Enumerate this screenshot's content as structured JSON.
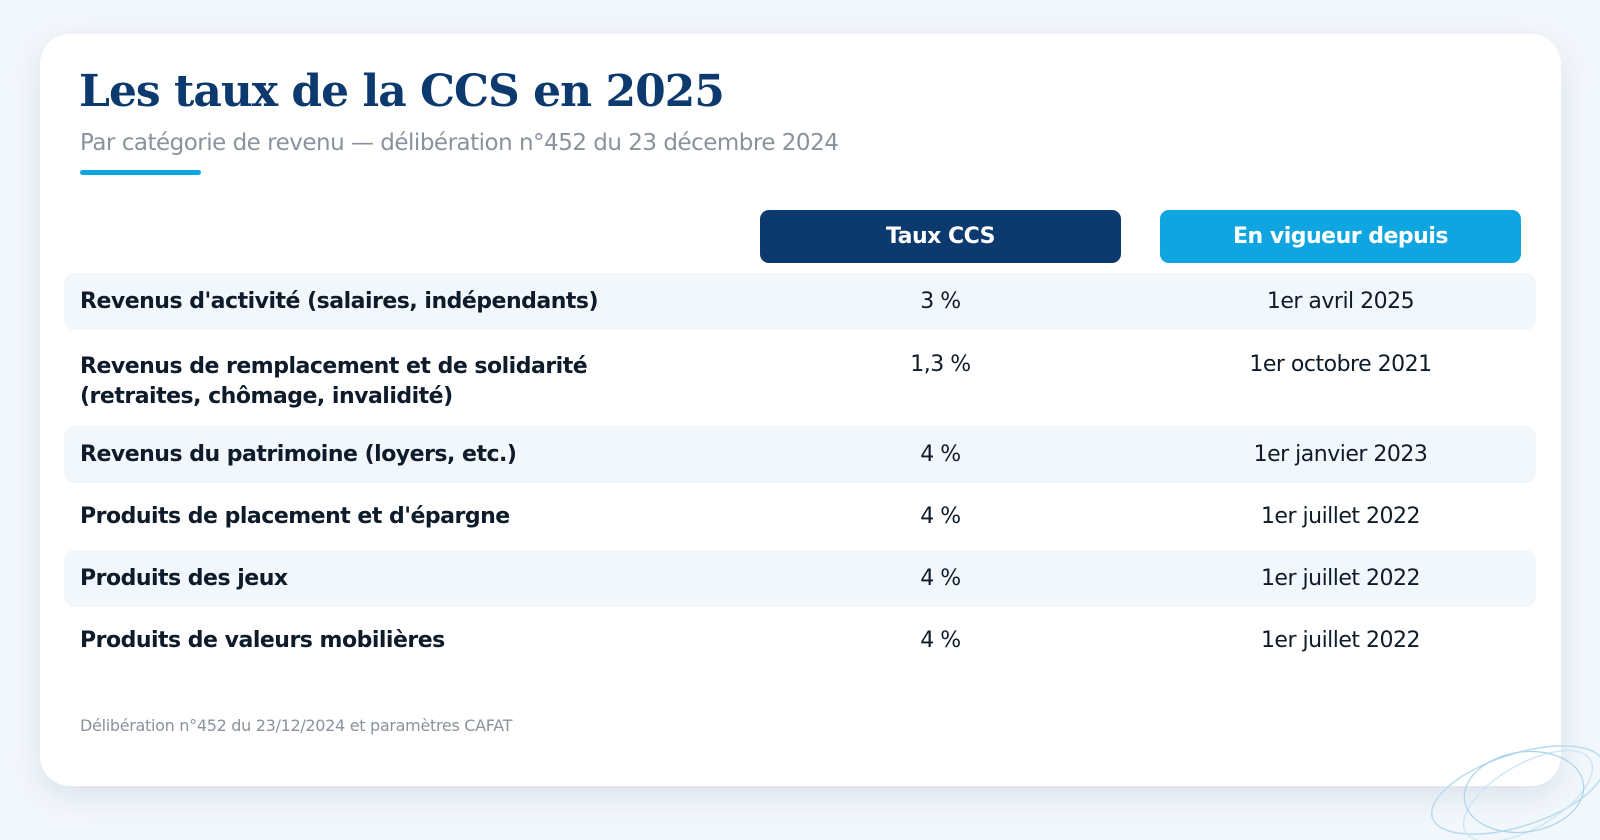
{
  "header": {
    "title": "Les taux de la CCS en 2025",
    "subtitle": "Par catégorie de revenu — délibération n°452 du 23 décembre 2024"
  },
  "table": {
    "columns": [
      "Taux CCS",
      "En vigueur depuis"
    ],
    "rows": [
      {
        "category": "Revenus d'activité (salaires, indépendants)",
        "rate": "3 %",
        "since": "1er avril 2025"
      },
      {
        "category": "Revenus de remplacement et de solidarité (retraites, chômage, invalidité)",
        "rate": "1,3 %",
        "since": "1er octobre 2021"
      },
      {
        "category": "Revenus du patrimoine (loyers, etc.)",
        "rate": "4 %",
        "since": "1er janvier 2023"
      },
      {
        "category": "Produits de placement et d'épargne",
        "rate": "4 %",
        "since": "1er juillet 2022"
      },
      {
        "category": "Produits des jeux",
        "rate": "4 %",
        "since": "1er juillet 2022"
      },
      {
        "category": "Produits de valeurs mobilières",
        "rate": "4 %",
        "since": "1er juillet 2022"
      }
    ]
  },
  "footnote": "Délibération n°452 du 23/12/2024 et paramètres CAFAT",
  "colors": {
    "title": "#0c3a6e",
    "primary_header": "#0c3a6e",
    "secondary_header": "#0ea5e0",
    "accent": "#0ea5e0",
    "row_shade": "#f1f7fb"
  }
}
